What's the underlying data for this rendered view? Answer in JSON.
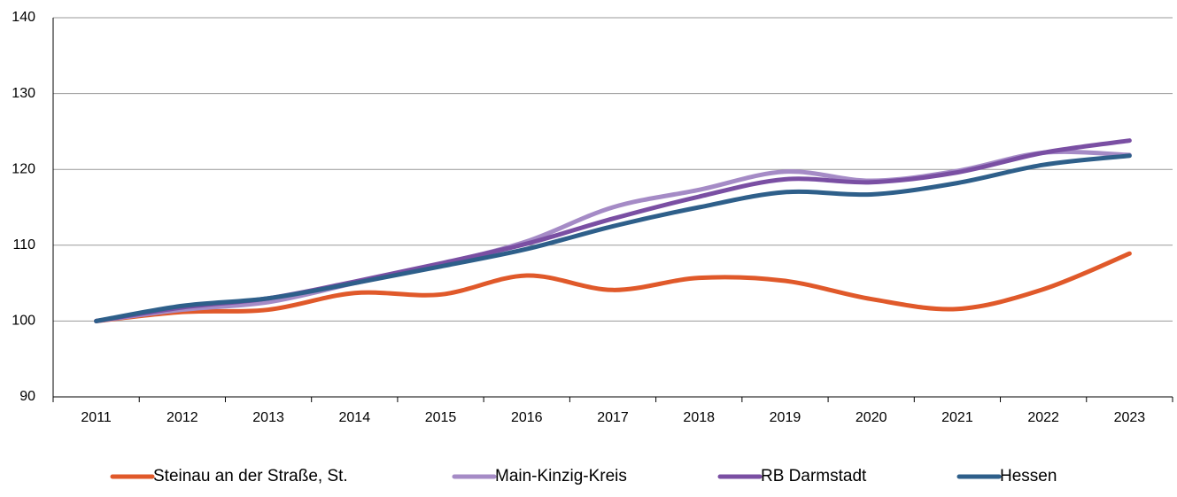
{
  "chart_data": {
    "type": "line",
    "categories": [
      "2011",
      "2012",
      "2013",
      "2014",
      "2015",
      "2016",
      "2017",
      "2018",
      "2019",
      "2020",
      "2021",
      "2022",
      "2023"
    ],
    "series": [
      {
        "name": "Steinau an der Straße, St.",
        "color": "#e0592a",
        "values": [
          100,
          101.2,
          101.5,
          103.7,
          103.5,
          106.0,
          104.1,
          105.7,
          105.3,
          102.9,
          101.6,
          104.2,
          108.9
        ]
      },
      {
        "name": "Main-Kinzig-Kreis",
        "color": "#a58bc6",
        "values": [
          100,
          101.5,
          102.5,
          105.0,
          107.5,
          110.5,
          115.0,
          117.3,
          119.7,
          118.5,
          119.8,
          122.2,
          121.9
        ]
      },
      {
        "name": "RB Darmstadt",
        "color": "#7a4fa3",
        "values": [
          100,
          101.8,
          103.0,
          105.2,
          107.6,
          110.2,
          113.5,
          116.4,
          118.7,
          118.3,
          119.6,
          122.2,
          123.8
        ]
      },
      {
        "name": "Hessen",
        "color": "#2e5f8a",
        "values": [
          100,
          102.0,
          103.0,
          105.0,
          107.2,
          109.5,
          112.5,
          115.0,
          117.0,
          116.7,
          118.2,
          120.6,
          121.8
        ]
      }
    ],
    "ylim": [
      90,
      140
    ],
    "yticks": [
      90,
      100,
      110,
      120,
      130,
      140
    ],
    "grid": true,
    "legend": "bottom"
  }
}
